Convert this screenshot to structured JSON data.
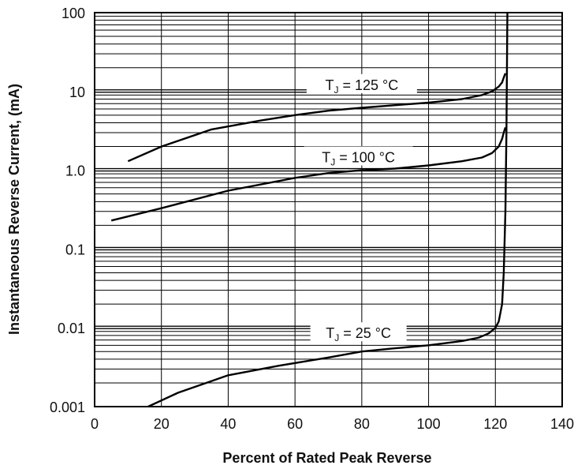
{
  "chart_data": {
    "type": "line",
    "title": "",
    "xlabel": "Percent of Rated Peak Reverse",
    "ylabel": "Instantaneous Reverse Current, (mA)",
    "x_scale": "linear",
    "y_scale": "log",
    "xlim": [
      0,
      140
    ],
    "ylim": [
      0.001,
      100
    ],
    "x_ticks": [
      0,
      20,
      40,
      60,
      80,
      100,
      120,
      140
    ],
    "x_tick_labels": [
      "0",
      "20",
      "40",
      "60",
      "80",
      "100",
      "120",
      "140"
    ],
    "y_ticks": [
      0.001,
      0.01,
      0.1,
      1,
      10,
      100
    ],
    "y_tick_labels": [
      "0.001",
      "0.01",
      "0.1",
      "1.0",
      "10",
      "100"
    ],
    "grid": true,
    "series": [
      {
        "label_parts": {
          "prefix": "T",
          "sub": "J",
          "suffix": " = 125 °C"
        },
        "x": [
          10,
          20,
          35,
          50,
          60,
          70,
          80,
          90,
          100,
          110,
          116,
          119,
          121,
          122,
          122.5,
          123
        ],
        "y": [
          1.3,
          2.0,
          3.3,
          4.3,
          5.0,
          5.7,
          6.2,
          6.7,
          7.2,
          8.0,
          9.0,
          10.0,
          11.5,
          13.0,
          15.0,
          17.0
        ]
      },
      {
        "label_parts": {
          "prefix": "T",
          "sub": "J",
          "suffix": " = 100 °C"
        },
        "x": [
          5,
          20,
          40,
          60,
          70,
          80,
          90,
          100,
          110,
          116,
          119,
          121,
          122,
          122.5,
          123
        ],
        "y": [
          0.23,
          0.33,
          0.55,
          0.8,
          0.92,
          1.0,
          1.05,
          1.15,
          1.3,
          1.45,
          1.65,
          2.0,
          2.5,
          3.0,
          3.5
        ]
      },
      {
        "label_parts": {
          "prefix": "T",
          "sub": "J",
          "suffix": " = 25 °C"
        },
        "x": [
          16,
          25,
          40,
          55,
          70,
          80,
          90,
          100,
          110,
          115,
          118,
          120,
          121,
          122,
          122.5,
          123,
          123.3,
          123.5,
          123.6
        ],
        "y": [
          0.001,
          0.0015,
          0.0025,
          0.0033,
          0.0042,
          0.005,
          0.0055,
          0.006,
          0.0068,
          0.0075,
          0.0085,
          0.01,
          0.012,
          0.02,
          0.05,
          0.3,
          3,
          30,
          100
        ]
      }
    ]
  }
}
